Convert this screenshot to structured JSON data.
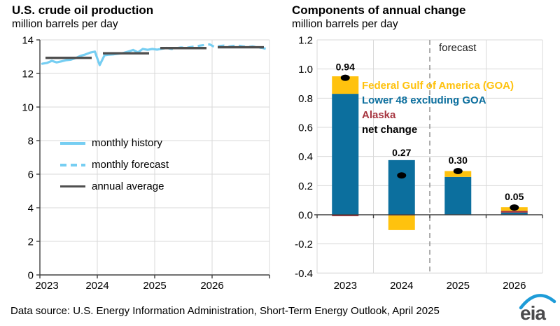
{
  "footer": {
    "source": "Data source: U.S. Energy Information Administration, Short-Term Energy Outlook, April 2025"
  },
  "logo": {
    "text": "eia"
  },
  "colors": {
    "monthly_line": "#76CEF2",
    "annual_line": "#4F4F4F",
    "goa": "#FFC20E",
    "lower48": "#0C6F9E",
    "alaska": "#A6353F",
    "net_change": "#000000",
    "grid": "#D9D9D9",
    "axis": "#404040",
    "divider": "#9A9A9A",
    "logo_blue": "#1E9CD8",
    "logo_gray": "#4A4A4C"
  },
  "chart_data": [
    {
      "type": "line",
      "title": "U.S. crude oil production",
      "subtitle": "million barrels per day",
      "ylim": [
        0,
        14
      ],
      "yticks": [
        0,
        2,
        4,
        6,
        8,
        10,
        12,
        14
      ],
      "ytick_labels": [
        "0",
        "2",
        "4",
        "6",
        "8",
        "10",
        "12",
        "14"
      ],
      "xtick_labels": [
        "2023",
        "2024",
        "2025",
        "2026"
      ],
      "grid": true,
      "legend_position": "inside-left",
      "legend": [
        {
          "label": "monthly history",
          "style": "solid",
          "color": "#76CEF2"
        },
        {
          "label": "monthly forecast",
          "style": "dashed",
          "color": "#76CEF2"
        },
        {
          "label": "annual average",
          "style": "solid",
          "color": "#4F4F4F"
        }
      ],
      "monthly": {
        "start": "2023-01",
        "forecast_start_index": 26,
        "values": [
          12.58,
          12.63,
          12.75,
          12.66,
          12.72,
          12.79,
          12.82,
          12.92,
          13.05,
          13.13,
          13.24,
          13.3,
          12.5,
          13.08,
          13.12,
          13.14,
          13.18,
          13.22,
          13.31,
          13.4,
          13.26,
          13.46,
          13.41,
          13.46,
          13.42,
          13.47,
          13.52,
          13.46,
          13.5,
          13.55,
          13.52,
          13.57,
          13.61,
          13.66,
          13.7,
          13.73,
          13.58,
          13.63,
          13.66,
          13.6,
          13.64,
          13.66,
          13.61,
          13.58,
          13.61,
          13.55,
          13.52,
          13.44
        ]
      },
      "annual_average": {
        "years": [
          "2023",
          "2024",
          "2025",
          "2026"
        ],
        "values": [
          12.93,
          13.2,
          13.51,
          13.56
        ]
      }
    },
    {
      "type": "bar",
      "title": "Components of annual change",
      "subtitle": "million barrels per day",
      "ylim": [
        -0.4,
        1.2
      ],
      "yticks": [
        -0.4,
        -0.2,
        0.0,
        0.2,
        0.4,
        0.6,
        0.8,
        1.0,
        1.2
      ],
      "ytick_labels": [
        "-0.4",
        "-0.2",
        "0.0",
        "0.2",
        "0.4",
        "0.6",
        "0.8",
        "1.0",
        "1.2"
      ],
      "categories": [
        "2023",
        "2024",
        "2025",
        "2026"
      ],
      "grid": true,
      "series": [
        {
          "name": "Lower 48 excluding GOA",
          "color": "#0C6F9E",
          "values": [
            0.83,
            0.375,
            0.26,
            0.015
          ]
        },
        {
          "name": "Alaska",
          "color": "#A6353F",
          "values": [
            -0.01,
            -0.005,
            0.0,
            0.012
          ]
        },
        {
          "name": "Federal Gulf of America (GOA)",
          "color": "#FFC20E",
          "values": [
            0.12,
            -0.1,
            0.04,
            0.025
          ]
        }
      ],
      "net_change": {
        "label": "net change",
        "color": "#000000",
        "values": [
          0.94,
          0.27,
          0.3,
          0.05
        ]
      },
      "bar_labels": [
        "0.94",
        "0.27",
        "0.30",
        "0.05"
      ],
      "forecast": {
        "label": "forecast",
        "divider_after_category": "2024"
      },
      "legend": [
        {
          "label": "Federal Gulf of America (GOA)",
          "color": "#FFC20E"
        },
        {
          "label": "Lower 48 excluding GOA",
          "color": "#0C6F9E"
        },
        {
          "label": "Alaska",
          "color": "#A6353F"
        },
        {
          "label": "net change",
          "color": "#000000"
        }
      ]
    }
  ]
}
